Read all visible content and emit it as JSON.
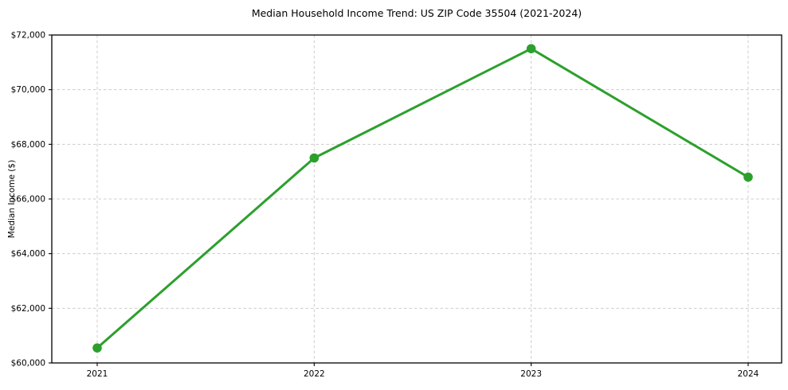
{
  "chart_data": {
    "type": "line",
    "title": "Median Household Income Trend: US ZIP Code 35504 (2021-2024)",
    "xlabel": "",
    "ylabel": "Median Income ($)",
    "categories": [
      "2021",
      "2022",
      "2023",
      "2024"
    ],
    "values": [
      60550,
      67500,
      71500,
      66800
    ],
    "series_name": "Median Household Income",
    "ylim": [
      60000,
      72000
    ],
    "yticks": [
      60000,
      62000,
      64000,
      66000,
      68000,
      70000,
      72000
    ],
    "ytick_labels": [
      "$60,000",
      "$62,000",
      "$64,000",
      "$66,000",
      "$68,000",
      "$70,000",
      "$72,000"
    ],
    "grid": true,
    "grid_style": "dashed",
    "grid_color": "#cccccc",
    "line_color": "#2ca02c",
    "marker": "circle",
    "legend": "none",
    "background_color": "#ffffff"
  }
}
